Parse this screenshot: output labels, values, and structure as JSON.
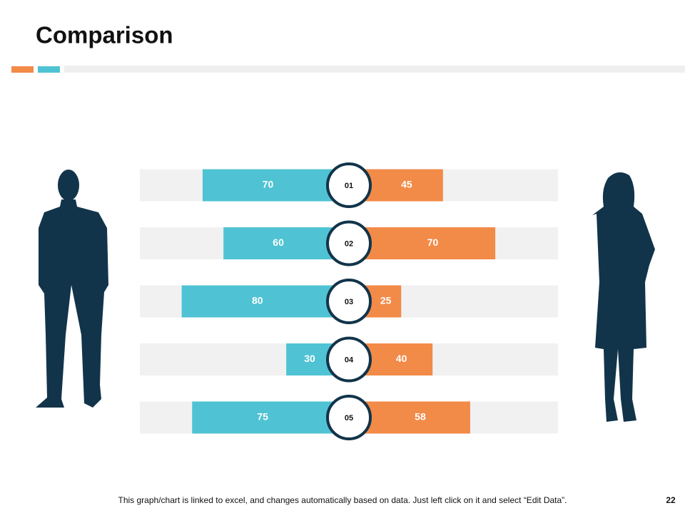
{
  "title": "Comparison",
  "chart_data": {
    "type": "diverging-bar",
    "categories": [
      "01",
      "02",
      "03",
      "04",
      "05"
    ],
    "series": [
      {
        "color": "#4fc3d3",
        "values": [
          70,
          60,
          80,
          30,
          75
        ]
      },
      {
        "color": "#f28a48",
        "values": [
          45,
          70,
          25,
          40,
          58
        ]
      }
    ],
    "xlim": [
      0,
      100
    ]
  },
  "footer": {
    "note": "This graph/chart is linked to excel, and changes automatically based on data. Just left click on it and select “Edit Data”.",
    "page": "22"
  }
}
